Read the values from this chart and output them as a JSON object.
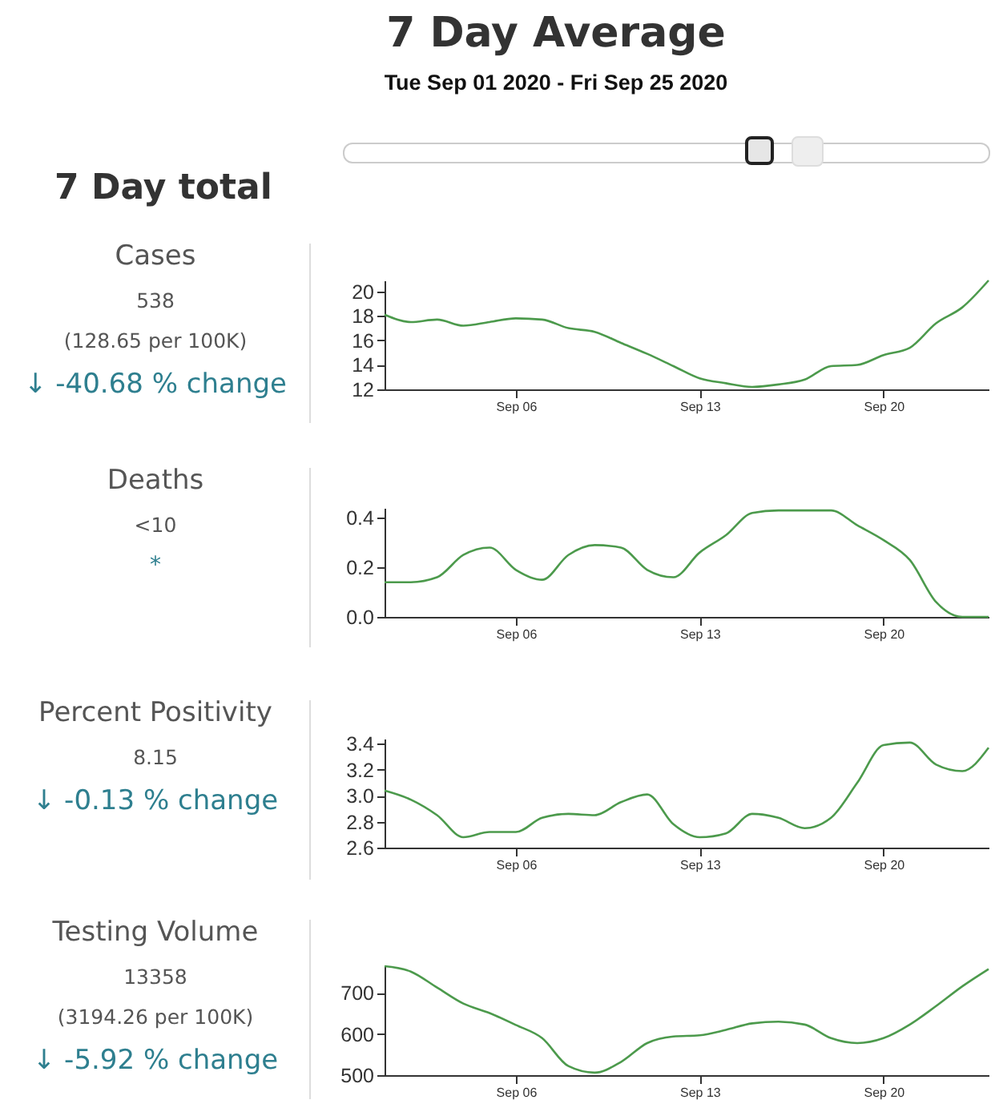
{
  "chart_data": [
    {
      "type": "other",
      "title": "7 Day Average",
      "subtitle": "Tue Sep 01 2020 - Fri Sep 25 2020",
      "annotations": [
        "7 Day total"
      ]
    },
    {
      "type": "other",
      "title": "Cases",
      "annotations": [
        "538",
        "(128.65 per 100K)",
        "↓ -40.68 % change"
      ]
    },
    {
      "type": "line",
      "x": [
        "2020-09-01",
        "2020-09-02",
        "2020-09-03",
        "2020-09-04",
        "2020-09-05",
        "2020-09-06",
        "2020-09-07",
        "2020-09-08",
        "2020-09-09",
        "2020-09-10",
        "2020-09-11",
        "2020-09-12",
        "2020-09-13",
        "2020-09-14",
        "2020-09-15",
        "2020-09-16",
        "2020-09-17",
        "2020-09-18",
        "2020-09-19",
        "2020-09-20",
        "2020-09-21",
        "2020-09-22",
        "2020-09-23",
        "2020-09-24"
      ],
      "xlim": [
        "2020-09-01",
        "2020-09-24"
      ],
      "xticks": [
        {
          "value": "2020-09-06",
          "label": "Sep 06"
        },
        {
          "value": "2020-09-13",
          "label": "Sep 13"
        },
        {
          "value": "2020-09-20",
          "label": "Sep 20"
        }
      ],
      "ylim": [
        12,
        20.9
      ],
      "yticks": [
        12,
        14,
        16,
        18,
        20
      ],
      "series": [
        {
          "color": "#4c9a4c",
          "values": [
            18.1,
            17.5,
            17.7,
            17.2,
            17.5,
            17.8,
            17.7,
            17.0,
            16.7,
            15.8,
            14.9,
            13.9,
            12.9,
            12.5,
            12.2,
            12.4,
            12.8,
            13.9,
            14.0,
            14.8,
            15.4,
            17.4,
            18.7,
            20.9
          ]
        }
      ]
    },
    {
      "type": "other",
      "title": "Deaths",
      "annotations": [
        "<10",
        "*"
      ]
    },
    {
      "type": "line",
      "x": [
        "2020-09-01",
        "2020-09-02",
        "2020-09-03",
        "2020-09-04",
        "2020-09-05",
        "2020-09-06",
        "2020-09-07",
        "2020-09-08",
        "2020-09-09",
        "2020-09-10",
        "2020-09-11",
        "2020-09-12",
        "2020-09-13",
        "2020-09-14",
        "2020-09-15",
        "2020-09-16",
        "2020-09-17",
        "2020-09-18",
        "2020-09-19",
        "2020-09-20",
        "2020-09-21",
        "2020-09-22",
        "2020-09-23",
        "2020-09-24"
      ],
      "xlim": [
        "2020-09-01",
        "2020-09-24"
      ],
      "xticks": [
        {
          "value": "2020-09-06",
          "label": "Sep 06"
        },
        {
          "value": "2020-09-13",
          "label": "Sep 13"
        },
        {
          "value": "2020-09-20",
          "label": "Sep 20"
        }
      ],
      "ylim": [
        0,
        0.44
      ],
      "yticks": [
        {
          "value": 0,
          "label": "0.0"
        },
        0.2,
        0.4
      ],
      "series": [
        {
          "color": "#4c9a4c",
          "values": [
            0.14,
            0.14,
            0.16,
            0.25,
            0.28,
            0.19,
            0.15,
            0.25,
            0.29,
            0.28,
            0.19,
            0.16,
            0.26,
            0.33,
            0.42,
            0.43,
            0.43,
            0.43,
            0.37,
            0.31,
            0.23,
            0.06,
            0,
            0
          ]
        }
      ]
    },
    {
      "type": "other",
      "title": "Percent Positivity",
      "annotations": [
        "8.15",
        "↓ -0.13 % change"
      ]
    },
    {
      "type": "line",
      "x": [
        "2020-09-01",
        "2020-09-02",
        "2020-09-03",
        "2020-09-04",
        "2020-09-05",
        "2020-09-06",
        "2020-09-07",
        "2020-09-08",
        "2020-09-09",
        "2020-09-10",
        "2020-09-11",
        "2020-09-12",
        "2020-09-13",
        "2020-09-14",
        "2020-09-15",
        "2020-09-16",
        "2020-09-17",
        "2020-09-18",
        "2020-09-19",
        "2020-09-20",
        "2020-09-21",
        "2020-09-22",
        "2020-09-23",
        "2020-09-24"
      ],
      "xlim": [
        "2020-09-01",
        "2020-09-24"
      ],
      "xticks": [
        {
          "value": "2020-09-06",
          "label": "Sep 06"
        },
        {
          "value": "2020-09-13",
          "label": "Sep 13"
        },
        {
          "value": "2020-09-20",
          "label": "Sep 20"
        }
      ],
      "ylim": [
        2.6,
        3.44
      ],
      "yticks": [
        2.6,
        2.8,
        {
          "value": 3,
          "label": "3.0"
        },
        3.2,
        3.4
      ],
      "series": [
        {
          "color": "#4c9a4c",
          "values": [
            3.04,
            2.97,
            2.85,
            2.68,
            2.72,
            2.72,
            2.83,
            2.86,
            2.85,
            2.95,
            3.01,
            2.78,
            2.68,
            2.71,
            2.86,
            2.83,
            2.75,
            2.83,
            3.1,
            3.39,
            3.41,
            3.24,
            3.19,
            3.37
          ]
        }
      ]
    },
    {
      "type": "other",
      "title": "Testing Volume",
      "annotations": [
        "13358",
        "(3194.26 per 100K)",
        "↓ -5.92 % change"
      ]
    },
    {
      "type": "line",
      "x": [
        "2020-09-01",
        "2020-09-02",
        "2020-09-03",
        "2020-09-04",
        "2020-09-05",
        "2020-09-06",
        "2020-09-07",
        "2020-09-08",
        "2020-09-09",
        "2020-09-10",
        "2020-09-11",
        "2020-09-12",
        "2020-09-13",
        "2020-09-14",
        "2020-09-15",
        "2020-09-16",
        "2020-09-17",
        "2020-09-18",
        "2020-09-19",
        "2020-09-20",
        "2020-09-21",
        "2020-09-22",
        "2020-09-23",
        "2020-09-24"
      ],
      "xlim": [
        "2020-09-01",
        "2020-09-24"
      ],
      "xticks": [
        {
          "value": "2020-09-06",
          "label": "Sep 06"
        },
        {
          "value": "2020-09-13",
          "label": "Sep 13"
        },
        {
          "value": "2020-09-20",
          "label": "Sep 20"
        }
      ],
      "ylim": [
        500,
        765
      ],
      "yticks": [
        500,
        600,
        700
      ],
      "series": [
        {
          "color": "#4c9a4c",
          "values": [
            765,
            752,
            713,
            674,
            651,
            622,
            590,
            522,
            506,
            532,
            578,
            594,
            597,
            610,
            626,
            630,
            623,
            590,
            578,
            590,
            623,
            668,
            716,
            758
          ]
        }
      ]
    }
  ]
}
